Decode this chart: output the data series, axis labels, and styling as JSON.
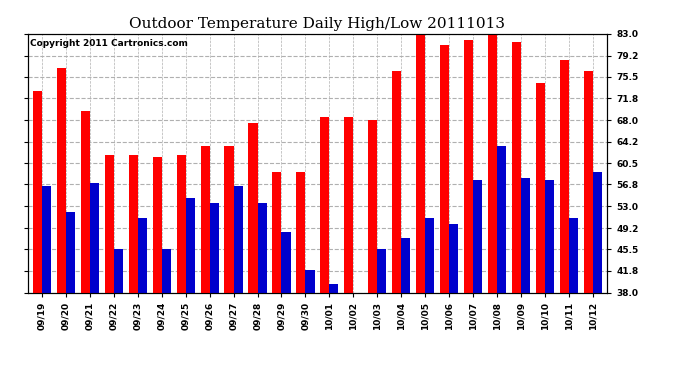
{
  "title": "Outdoor Temperature Daily High/Low 20111013",
  "copyright": "Copyright 2011 Cartronics.com",
  "categories": [
    "09/19",
    "09/20",
    "09/21",
    "09/22",
    "09/23",
    "09/24",
    "09/25",
    "09/26",
    "09/27",
    "09/28",
    "09/29",
    "09/30",
    "10/01",
    "10/02",
    "10/03",
    "10/04",
    "10/05",
    "10/06",
    "10/07",
    "10/08",
    "10/09",
    "10/10",
    "10/11",
    "10/12"
  ],
  "highs": [
    73.0,
    77.0,
    69.5,
    62.0,
    62.0,
    61.5,
    62.0,
    63.5,
    63.5,
    67.5,
    59.0,
    59.0,
    68.5,
    68.5,
    68.0,
    76.5,
    83.0,
    81.0,
    82.0,
    83.0,
    81.5,
    74.5,
    78.5,
    76.5
  ],
  "lows": [
    56.5,
    52.0,
    57.0,
    45.5,
    51.0,
    45.5,
    54.5,
    53.5,
    56.5,
    53.5,
    48.5,
    42.0,
    39.5,
    38.0,
    45.5,
    47.5,
    51.0,
    50.0,
    57.5,
    63.5,
    58.0,
    57.5,
    51.0,
    59.0
  ],
  "high_color": "#ff0000",
  "low_color": "#0000cc",
  "background_color": "#ffffff",
  "plot_bg_color": "#ffffff",
  "grid_color": "#b0b0b0",
  "yticks": [
    38.0,
    41.8,
    45.5,
    49.2,
    53.0,
    56.8,
    60.5,
    64.2,
    68.0,
    71.8,
    75.5,
    79.2,
    83.0
  ],
  "ymin": 38.0,
  "ymax": 83.0,
  "bar_width": 0.38,
  "title_fontsize": 11,
  "tick_fontsize": 6.5,
  "copyright_fontsize": 6.5
}
